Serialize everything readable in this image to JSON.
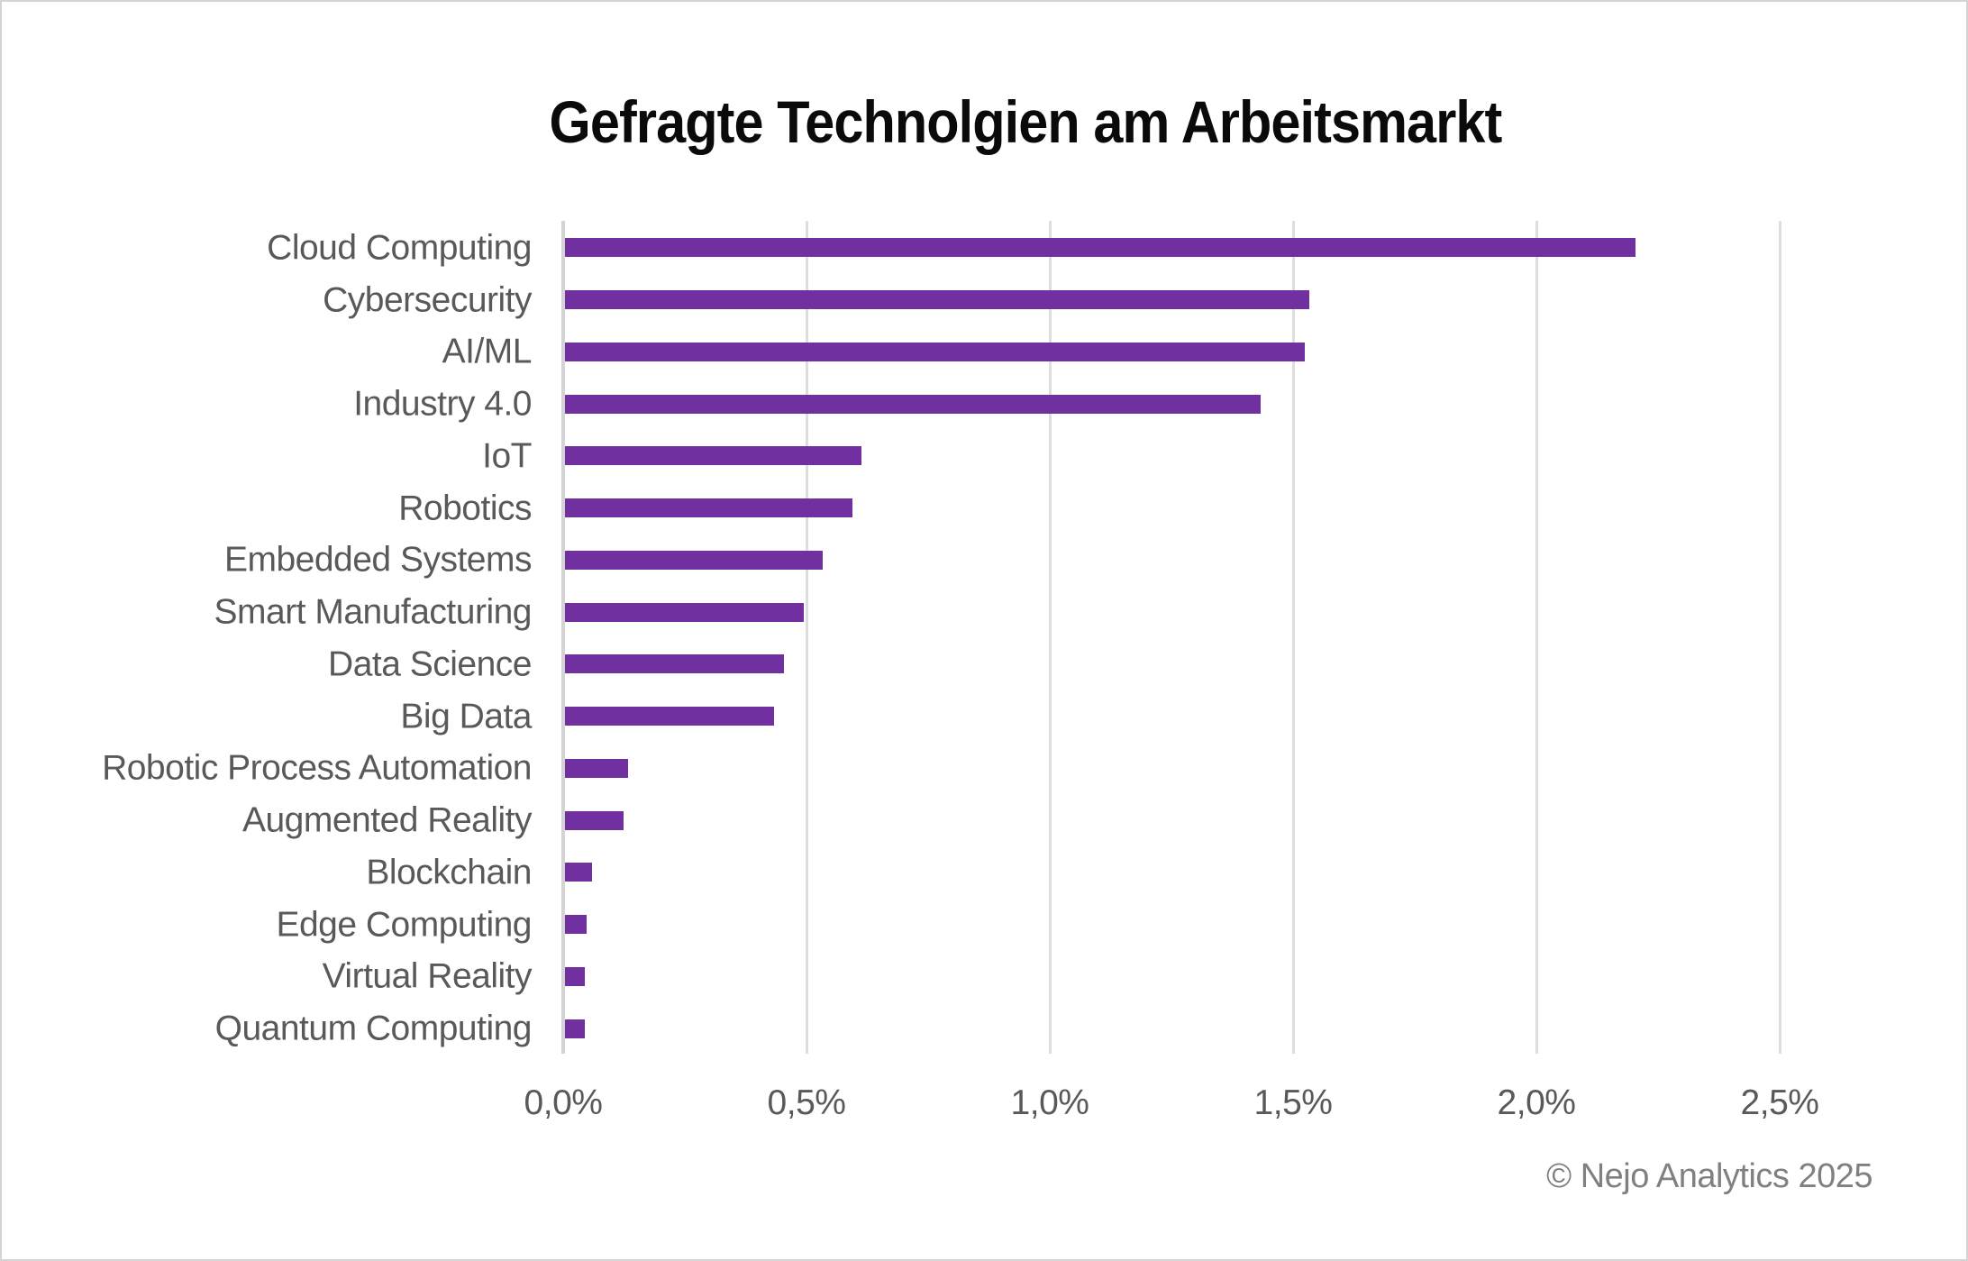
{
  "figure": {
    "background_color": "#ffffff",
    "border_color": "#d4d4d4"
  },
  "chart_data": {
    "type": "bar",
    "orientation": "horizontal",
    "title": "Gefragte Technolgien am Arbeitsmarkt",
    "categories": [
      "Cloud Computing",
      "Cybersecurity",
      "AI/ML",
      "Industry 4.0",
      "IoT",
      "Robotics",
      "Embedded Systems",
      "Smart Manufacturing",
      "Data Science",
      "Big Data",
      "Robotic Process Automation",
      "Augmented Reality",
      "Blockchain",
      "Edge Computing",
      "Virtual Reality",
      "Quantum Computing"
    ],
    "values": [
      2.2,
      1.53,
      1.52,
      1.43,
      0.61,
      0.59,
      0.53,
      0.49,
      0.45,
      0.43,
      0.13,
      0.12,
      0.055,
      0.045,
      0.04,
      0.04
    ],
    "unit": "%",
    "xlabel": "",
    "ylabel": "",
    "xlim": [
      0,
      2.5
    ],
    "x_ticks": [
      {
        "value": 0.0,
        "label": "0,0%"
      },
      {
        "value": 0.5,
        "label": "0,5%"
      },
      {
        "value": 1.0,
        "label": "1,0%"
      },
      {
        "value": 1.5,
        "label": "1,5%"
      },
      {
        "value": 2.0,
        "label": "2,0%"
      },
      {
        "value": 2.5,
        "label": "2,5%"
      }
    ],
    "grid": "vertical-only",
    "legend": "none",
    "bar_color": "#7030A0",
    "gridline_color": "#dedede",
    "axis_line_color": "#d4d4d4",
    "label_color": "#595959",
    "title_color": "#0a0a0a",
    "attribution": "© Nejo Analytics 2025",
    "attribution_color": "#808080"
  }
}
